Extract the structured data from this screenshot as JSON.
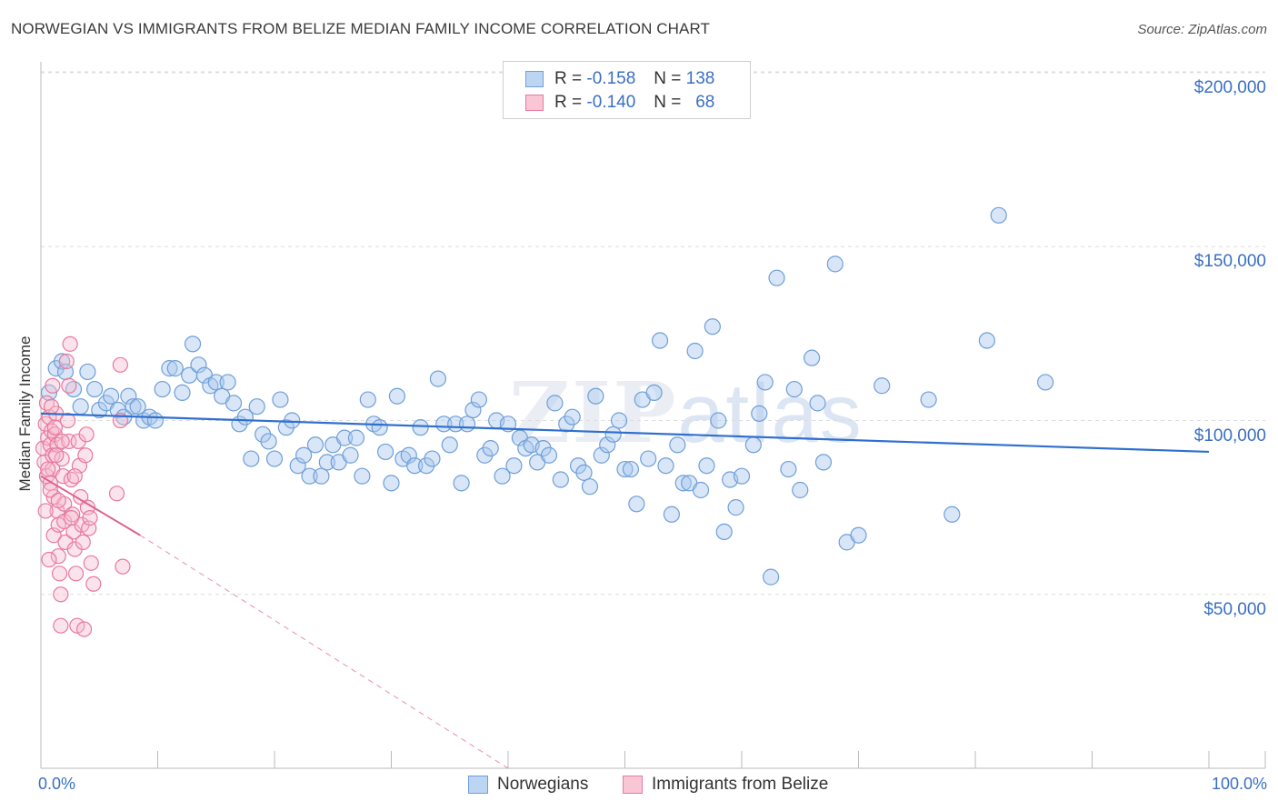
{
  "title": "NORWEGIAN VS IMMIGRANTS FROM BELIZE MEDIAN FAMILY INCOME CORRELATION CHART",
  "source": "Source: ZipAtlas.com",
  "watermark": {
    "zip": "ZIP",
    "atlas": "atlas"
  },
  "legend": {
    "series1": {
      "r_label": "R =",
      "r_value": "-0.158",
      "n_label": "N =",
      "n_value": "138"
    },
    "series2": {
      "r_label": "R =",
      "r_value": "-0.140",
      "n_label": "N =",
      "n_value": "68"
    }
  },
  "bottom_legend": {
    "series1": "Norwegians",
    "series2": "Immigrants from Belize"
  },
  "colors": {
    "blue_fill": "#a9c8ee",
    "blue_stroke": "#6f9fd8",
    "blue_line": "#2f6fcf",
    "pink_fill": "#f6b8cc",
    "pink_stroke": "#e8799d",
    "pink_line": "#e0608a",
    "tick_text": "#3a6fc4",
    "grid": "#dddddd"
  },
  "chart_data": {
    "type": "scatter",
    "title": "NORWEGIAN VS IMMIGRANTS FROM BELIZE MEDIAN FAMILY INCOME CORRELATION CHART",
    "xlabel": "",
    "ylabel": "Median Family Income",
    "xlim": [
      0,
      100
    ],
    "ylim": [
      0,
      210000
    ],
    "x_tick_labels": [
      "0.0%",
      "100.0%"
    ],
    "y_ticks": [
      50000,
      100000,
      150000,
      200000
    ],
    "y_tick_labels": [
      "$50,000",
      "$100,000",
      "$150,000",
      "$200,000"
    ],
    "series": [
      {
        "name": "Norwegians",
        "r": -0.158,
        "n": 138,
        "trend": {
          "x": [
            0,
            100
          ],
          "y": [
            102000,
            91000
          ]
        },
        "points": [
          [
            0.7,
            108000
          ],
          [
            1.3,
            115000
          ],
          [
            1.8,
            117000
          ],
          [
            2.1,
            114000
          ],
          [
            2.8,
            109000
          ],
          [
            3.4,
            104000
          ],
          [
            4.0,
            114000
          ],
          [
            4.6,
            109000
          ],
          [
            5.0,
            103000
          ],
          [
            5.6,
            105000
          ],
          [
            6.0,
            107000
          ],
          [
            6.6,
            103000
          ],
          [
            7.1,
            101000
          ],
          [
            7.5,
            107000
          ],
          [
            7.9,
            104000
          ],
          [
            8.3,
            104000
          ],
          [
            8.8,
            100000
          ],
          [
            9.3,
            101000
          ],
          [
            9.8,
            100000
          ],
          [
            10.4,
            109000
          ],
          [
            11.0,
            115000
          ],
          [
            11.5,
            115000
          ],
          [
            12.1,
            108000
          ],
          [
            12.7,
            113000
          ],
          [
            13.0,
            122000
          ],
          [
            13.5,
            116000
          ],
          [
            14.0,
            113000
          ],
          [
            14.5,
            110000
          ],
          [
            15.0,
            111000
          ],
          [
            15.5,
            107000
          ],
          [
            16.0,
            111000
          ],
          [
            16.5,
            105000
          ],
          [
            17.0,
            99000
          ],
          [
            17.5,
            101000
          ],
          [
            18.0,
            89000
          ],
          [
            18.5,
            104000
          ],
          [
            19.0,
            96000
          ],
          [
            19.5,
            94000
          ],
          [
            20.0,
            89000
          ],
          [
            20.5,
            106000
          ],
          [
            21.0,
            98000
          ],
          [
            21.5,
            100000
          ],
          [
            22.0,
            87000
          ],
          [
            22.5,
            90000
          ],
          [
            23.0,
            84000
          ],
          [
            23.5,
            93000
          ],
          [
            24.0,
            84000
          ],
          [
            24.5,
            88000
          ],
          [
            25.0,
            93000
          ],
          [
            25.5,
            88000
          ],
          [
            26.0,
            95000
          ],
          [
            26.5,
            90000
          ],
          [
            27.0,
            95000
          ],
          [
            27.5,
            84000
          ],
          [
            28.0,
            106000
          ],
          [
            28.5,
            99000
          ],
          [
            29.0,
            98000
          ],
          [
            29.5,
            91000
          ],
          [
            30.0,
            82000
          ],
          [
            30.5,
            107000
          ],
          [
            31.0,
            89000
          ],
          [
            31.5,
            90000
          ],
          [
            32.0,
            87000
          ],
          [
            32.5,
            98000
          ],
          [
            33.0,
            87000
          ],
          [
            33.5,
            89000
          ],
          [
            34.0,
            112000
          ],
          [
            34.5,
            99000
          ],
          [
            35.0,
            93000
          ],
          [
            35.5,
            99000
          ],
          [
            36.0,
            82000
          ],
          [
            36.5,
            99000
          ],
          [
            37.0,
            103000
          ],
          [
            37.5,
            106000
          ],
          [
            38.0,
            90000
          ],
          [
            38.5,
            92000
          ],
          [
            39.0,
            100000
          ],
          [
            39.5,
            84000
          ],
          [
            40.0,
            99000
          ],
          [
            40.5,
            87000
          ],
          [
            41.0,
            95000
          ],
          [
            41.5,
            92000
          ],
          [
            42.0,
            93000
          ],
          [
            42.5,
            88000
          ],
          [
            43.0,
            92000
          ],
          [
            43.5,
            90000
          ],
          [
            44.0,
            105000
          ],
          [
            44.5,
            83000
          ],
          [
            45.0,
            99000
          ],
          [
            45.5,
            101000
          ],
          [
            46.0,
            87000
          ],
          [
            46.5,
            85000
          ],
          [
            47.0,
            81000
          ],
          [
            47.5,
            107000
          ],
          [
            48.0,
            90000
          ],
          [
            48.5,
            93000
          ],
          [
            49.0,
            96000
          ],
          [
            49.5,
            100000
          ],
          [
            50.0,
            86000
          ],
          [
            50.5,
            86000
          ],
          [
            51.0,
            76000
          ],
          [
            51.5,
            106000
          ],
          [
            52.0,
            89000
          ],
          [
            52.5,
            108000
          ],
          [
            53.0,
            123000
          ],
          [
            53.5,
            87000
          ],
          [
            54.0,
            73000
          ],
          [
            54.5,
            93000
          ],
          [
            55.0,
            82000
          ],
          [
            55.5,
            82000
          ],
          [
            56.0,
            120000
          ],
          [
            56.5,
            80000
          ],
          [
            57.0,
            87000
          ],
          [
            57.5,
            127000
          ],
          [
            58.0,
            100000
          ],
          [
            58.5,
            68000
          ],
          [
            59.0,
            83000
          ],
          [
            59.5,
            75000
          ],
          [
            60.0,
            84000
          ],
          [
            61.0,
            93000
          ],
          [
            61.5,
            102000
          ],
          [
            62.0,
            111000
          ],
          [
            62.5,
            55000
          ],
          [
            63.0,
            141000
          ],
          [
            64.0,
            86000
          ],
          [
            64.5,
            109000
          ],
          [
            65.0,
            80000
          ],
          [
            66.0,
            118000
          ],
          [
            66.5,
            105000
          ],
          [
            67.0,
            88000
          ],
          [
            68.0,
            145000
          ],
          [
            69.0,
            65000
          ],
          [
            70.0,
            67000
          ],
          [
            72.0,
            110000
          ],
          [
            76.0,
            106000
          ],
          [
            78.0,
            73000
          ],
          [
            81.0,
            123000
          ],
          [
            82.0,
            159000
          ],
          [
            86.0,
            111000
          ]
        ]
      },
      {
        "name": "Immigrants from Belize",
        "r": -0.14,
        "n": 68,
        "trend_solid": {
          "x": [
            0,
            8.5
          ],
          "y": [
            84000,
            67000
          ]
        },
        "trend_dashed": {
          "x": [
            8.5,
            40
          ],
          "y": [
            67000,
            0
          ]
        },
        "points": [
          [
            0.2,
            92000
          ],
          [
            0.3,
            88000
          ],
          [
            0.4,
            99000
          ],
          [
            0.5,
            105000
          ],
          [
            0.5,
            84000
          ],
          [
            0.6,
            95000
          ],
          [
            0.7,
            101000
          ],
          [
            0.8,
            82000
          ],
          [
            0.8,
            93000
          ],
          [
            0.9,
            97000
          ],
          [
            1.0,
            90000
          ],
          [
            1.0,
            86000
          ],
          [
            1.1,
            78000
          ],
          [
            1.1,
            67000
          ],
          [
            1.2,
            96000
          ],
          [
            1.3,
            102000
          ],
          [
            1.4,
            93000
          ],
          [
            1.4,
            74000
          ],
          [
            1.5,
            70000
          ],
          [
            1.5,
            61000
          ],
          [
            1.6,
            56000
          ],
          [
            1.7,
            50000
          ],
          [
            1.7,
            41000
          ],
          [
            1.8,
            89000
          ],
          [
            1.9,
            84000
          ],
          [
            2.0,
            76000
          ],
          [
            2.0,
            71000
          ],
          [
            2.1,
            65000
          ],
          [
            2.2,
            117000
          ],
          [
            2.3,
            100000
          ],
          [
            2.4,
            94000
          ],
          [
            2.5,
            122000
          ],
          [
            2.6,
            83000
          ],
          [
            2.7,
            73000
          ],
          [
            2.8,
            68000
          ],
          [
            2.9,
            63000
          ],
          [
            3.0,
            56000
          ],
          [
            3.1,
            41000
          ],
          [
            3.2,
            94000
          ],
          [
            3.3,
            87000
          ],
          [
            3.4,
            78000
          ],
          [
            3.5,
            70000
          ],
          [
            3.6,
            65000
          ],
          [
            3.7,
            40000
          ],
          [
            3.8,
            90000
          ],
          [
            4.0,
            75000
          ],
          [
            4.1,
            69000
          ],
          [
            4.2,
            72000
          ],
          [
            4.3,
            59000
          ],
          [
            4.5,
            53000
          ],
          [
            1.0,
            110000
          ],
          [
            0.9,
            104000
          ],
          [
            1.3,
            90000
          ],
          [
            1.8,
            94000
          ],
          [
            0.6,
            86000
          ],
          [
            0.8,
            80000
          ],
          [
            2.4,
            110000
          ],
          [
            2.9,
            84000
          ],
          [
            1.5,
            77000
          ],
          [
            0.4,
            74000
          ],
          [
            3.9,
            96000
          ],
          [
            6.5,
            79000
          ],
          [
            6.8,
            116000
          ],
          [
            7.0,
            58000
          ],
          [
            6.8,
            100000
          ],
          [
            1.2,
            98000
          ],
          [
            2.6,
            72000
          ],
          [
            0.7,
            60000
          ]
        ]
      }
    ]
  }
}
